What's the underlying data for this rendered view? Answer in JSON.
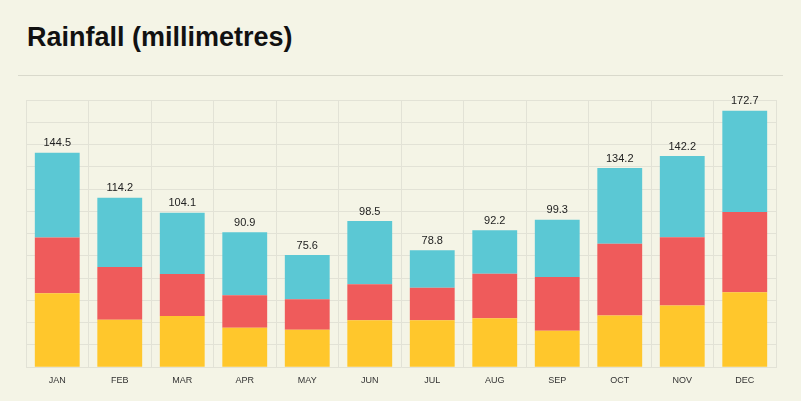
{
  "chart_data": {
    "type": "bar",
    "title": "Rainfall (millimetres)",
    "categories": [
      "JAN",
      "FEB",
      "MAR",
      "APR",
      "MAY",
      "JUN",
      "JUL",
      "AUG",
      "SEP",
      "OCT",
      "NOV",
      "DEC"
    ],
    "series": [
      {
        "color": "#ffc72c",
        "values": [
          49.9,
          32.0,
          34.5,
          26.5,
          25.2,
          31.6,
          31.7,
          33.0,
          24.6,
          34.8,
          41.5,
          50.5
        ]
      },
      {
        "color": "#ef5b5b",
        "values": [
          37.4,
          35.5,
          28.3,
          21.9,
          20.5,
          24.3,
          21.9,
          30.0,
          36.2,
          48.3,
          46.1,
          54.0
        ]
      },
      {
        "color": "#5bc8d4",
        "values": [
          57.2,
          46.7,
          41.3,
          42.5,
          29.9,
          42.6,
          25.2,
          29.2,
          38.5,
          51.1,
          54.6,
          68.2
        ]
      }
    ],
    "totals": [
      144.5,
      114.2,
      104.1,
      90.9,
      75.6,
      98.5,
      78.8,
      92.2,
      99.3,
      134.2,
      142.2,
      172.7
    ],
    "stacked": true,
    "data_labels": true,
    "ylim": [
      0,
      180
    ],
    "yticks": [
      0,
      15,
      30,
      45,
      60,
      75,
      90,
      105,
      120,
      135,
      150,
      165,
      180
    ],
    "grid": true,
    "tick_labels": "x"
  }
}
